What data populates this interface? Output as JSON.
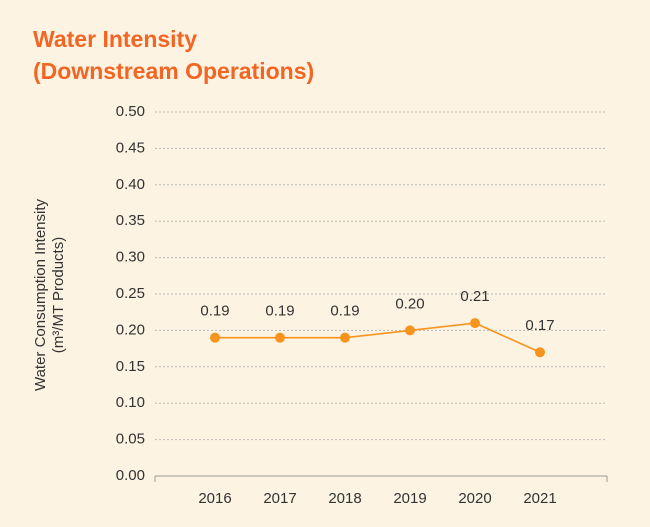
{
  "chart_data": {
    "type": "line",
    "title": [
      "Water Intensity",
      "(Downstream Operations)"
    ],
    "y_label": [
      "Water Consumption Intensity",
      "(m³/MT Products)"
    ],
    "categories": [
      "2016",
      "2017",
      "2018",
      "2019",
      "2020",
      "2021"
    ],
    "series": [
      {
        "name": "Water Intensity",
        "color": "#f7941d",
        "values": [
          0.19,
          0.19,
          0.19,
          0.2,
          0.21,
          0.17
        ],
        "value_labels": [
          "0.19",
          "0.19",
          "0.19",
          "0.20",
          "0.21",
          "0.17"
        ]
      }
    ],
    "ylim": [
      0,
      0.5
    ],
    "yticks": [
      {
        "value": 0,
        "label": "0.00"
      },
      {
        "value": 0.05,
        "label": "0.05"
      },
      {
        "value": 0.1,
        "label": "0.10"
      },
      {
        "value": 0.15,
        "label": "0.15"
      },
      {
        "value": 0.2,
        "label": "0.20"
      },
      {
        "value": 0.25,
        "label": "0.25"
      },
      {
        "value": 0.3,
        "label": "0.30"
      },
      {
        "value": 0.35,
        "label": "0.35"
      },
      {
        "value": 0.4,
        "label": "0.40"
      },
      {
        "value": 0.45,
        "label": "0.45"
      },
      {
        "value": 0.5,
        "label": "0.50"
      }
    ],
    "grid": true
  }
}
